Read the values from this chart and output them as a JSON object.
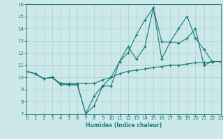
{
  "xlabel": "Humidex (Indice chaleur)",
  "xlim": [
    0,
    23
  ],
  "ylim": [
    7,
    16
  ],
  "xticks": [
    0,
    1,
    2,
    3,
    4,
    5,
    6,
    7,
    8,
    9,
    10,
    11,
    12,
    13,
    14,
    15,
    16,
    17,
    18,
    19,
    20,
    21,
    22,
    23
  ],
  "yticks": [
    7,
    8,
    9,
    10,
    11,
    12,
    13,
    14,
    15,
    16
  ],
  "line_color": "#1a7a6e",
  "bg_color": "#cde8ea",
  "grid_color": "#aed4d8",
  "series": [
    {
      "x": [
        0,
        1,
        2,
        3,
        4,
        5,
        6,
        7,
        8,
        9,
        10,
        11,
        12,
        13,
        14,
        15,
        16,
        17,
        18,
        19,
        20,
        21,
        22
      ],
      "y": [
        10.5,
        10.3,
        9.9,
        10.0,
        9.5,
        9.4,
        9.4,
        7.0,
        7.7,
        9.3,
        9.3,
        11.3,
        12.0,
        13.5,
        14.7,
        15.7,
        11.5,
        12.9,
        12.8,
        13.2,
        14.0,
        11.0,
        11.3
      ]
    },
    {
      "x": [
        0,
        1,
        2,
        3,
        4,
        5,
        6,
        7,
        8,
        9,
        10,
        11,
        12,
        13,
        14,
        15,
        16,
        17,
        18,
        19,
        20,
        21,
        22,
        23
      ],
      "y": [
        10.5,
        10.3,
        9.9,
        10.0,
        9.4,
        9.4,
        9.4,
        7.0,
        8.5,
        9.3,
        10.0,
        11.3,
        12.5,
        11.5,
        12.5,
        15.7,
        12.9,
        12.9,
        14.0,
        15.0,
        13.2,
        12.3,
        11.3,
        11.3
      ]
    },
    {
      "x": [
        0,
        1,
        2,
        3,
        4,
        5,
        6,
        7,
        8,
        9,
        10,
        11,
        12,
        13,
        14,
        15,
        16,
        17,
        18,
        19,
        20,
        21,
        22,
        23
      ],
      "y": [
        10.5,
        10.3,
        9.9,
        10.0,
        9.5,
        9.5,
        9.5,
        9.5,
        9.5,
        9.8,
        10.0,
        10.3,
        10.5,
        10.6,
        10.7,
        10.8,
        10.9,
        11.0,
        11.0,
        11.1,
        11.2,
        11.2,
        11.3,
        11.3
      ]
    }
  ]
}
